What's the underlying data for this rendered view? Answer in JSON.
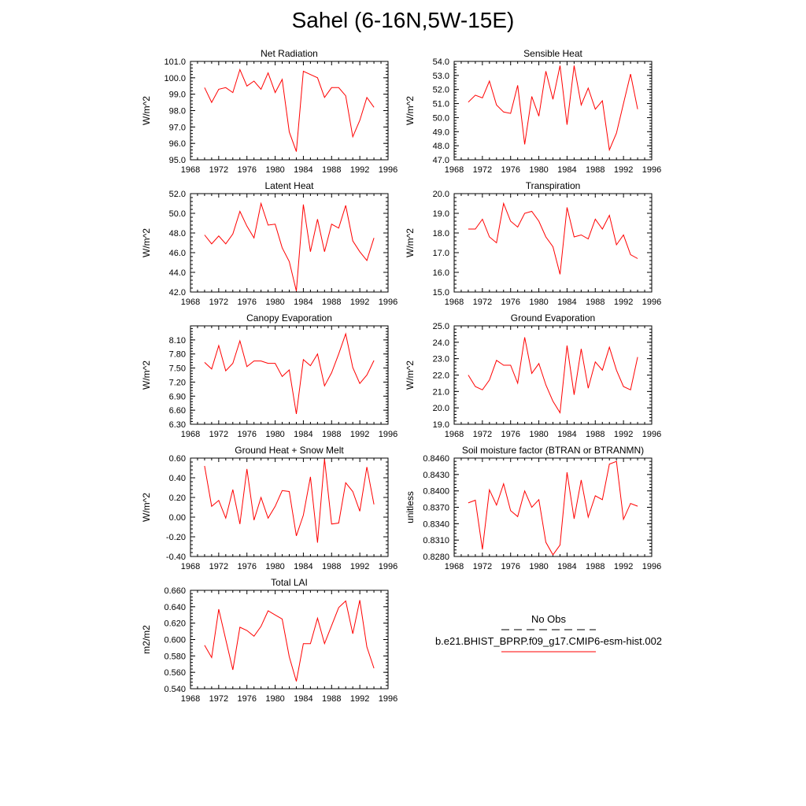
{
  "title": "Sahel (6-16N,5W-15E)",
  "legend": {
    "obs_label": "No Obs",
    "model_label": "b.e21.BHIST_BPRP.f09_g17.CMIP6-esm-hist.002",
    "obs_color": "#000000",
    "model_color": "#ff0000"
  },
  "chart_data": [
    {
      "type": "line",
      "title": "Net Radiation",
      "ylabel": "W/m^2",
      "xlim": [
        1968,
        1996
      ],
      "xticks": [
        "1968",
        "1972",
        "1976",
        "1980",
        "1984",
        "1988",
        "1992",
        "1996"
      ],
      "ylim": [
        95.0,
        101.0
      ],
      "yticks": [
        "95.0",
        "96.0",
        "97.0",
        "98.0",
        "99.0",
        "100.0",
        "101.0"
      ],
      "x": [
        1970,
        1971,
        1972,
        1973,
        1974,
        1975,
        1976,
        1977,
        1978,
        1979,
        1980,
        1981,
        1982,
        1983,
        1984,
        1985,
        1986,
        1987,
        1988,
        1989,
        1990,
        1991,
        1992,
        1993,
        1994
      ],
      "series": [
        {
          "values": [
            99.4,
            98.5,
            99.3,
            99.4,
            99.1,
            100.5,
            99.5,
            99.8,
            99.3,
            100.3,
            99.1,
            99.9,
            96.7,
            95.5,
            100.4,
            100.2,
            100.0,
            98.8,
            99.4,
            99.4,
            98.9,
            96.4,
            97.4,
            98.8,
            98.2
          ]
        }
      ]
    },
    {
      "type": "line",
      "title": "Sensible Heat",
      "ylabel": "W/m^2",
      "xlim": [
        1968,
        1996
      ],
      "xticks": [
        "1968",
        "1972",
        "1976",
        "1980",
        "1984",
        "1988",
        "1992",
        "1996"
      ],
      "ylim": [
        47.0,
        54.0
      ],
      "yticks": [
        "47.0",
        "48.0",
        "49.0",
        "50.0",
        "51.0",
        "52.0",
        "53.0",
        "54.0"
      ],
      "x": [
        1970,
        1971,
        1972,
        1973,
        1974,
        1975,
        1976,
        1977,
        1978,
        1979,
        1980,
        1981,
        1982,
        1983,
        1984,
        1985,
        1986,
        1987,
        1988,
        1989,
        1990,
        1991,
        1992,
        1993,
        1994
      ],
      "series": [
        {
          "values": [
            51.1,
            51.6,
            51.4,
            52.6,
            50.9,
            50.4,
            50.3,
            52.3,
            48.1,
            51.5,
            50.1,
            53.3,
            51.3,
            53.7,
            49.5,
            53.7,
            50.9,
            52.1,
            50.6,
            51.2,
            47.7,
            48.9,
            51.0,
            53.1,
            50.6
          ]
        }
      ]
    },
    {
      "type": "line",
      "title": "Latent Heat",
      "ylabel": "W/m^2",
      "xlim": [
        1968,
        1996
      ],
      "xticks": [
        "1968",
        "1972",
        "1976",
        "1980",
        "1984",
        "1988",
        "1992",
        "1996"
      ],
      "ylim": [
        42.0,
        52.0
      ],
      "yticks": [
        "42.0",
        "44.0",
        "46.0",
        "48.0",
        "50.0",
        "52.0"
      ],
      "x": [
        1970,
        1971,
        1972,
        1973,
        1974,
        1975,
        1976,
        1977,
        1978,
        1979,
        1980,
        1981,
        1982,
        1983,
        1984,
        1985,
        1986,
        1987,
        1988,
        1989,
        1990,
        1991,
        1992,
        1993,
        1994
      ],
      "series": [
        {
          "values": [
            47.8,
            46.9,
            47.7,
            46.9,
            47.9,
            50.2,
            48.7,
            47.5,
            51.0,
            48.8,
            48.9,
            46.5,
            45.1,
            42.1,
            50.9,
            46.1,
            49.4,
            46.1,
            48.9,
            48.5,
            50.8,
            47.2,
            46.1,
            45.2,
            47.5
          ]
        }
      ]
    },
    {
      "type": "line",
      "title": "Transpiration",
      "ylabel": "W/m^2",
      "xlim": [
        1968,
        1996
      ],
      "xticks": [
        "1968",
        "1972",
        "1976",
        "1980",
        "1984",
        "1988",
        "1992",
        "1996"
      ],
      "ylim": [
        15.0,
        20.0
      ],
      "yticks": [
        "15.0",
        "16.0",
        "17.0",
        "18.0",
        "19.0",
        "20.0"
      ],
      "x": [
        1970,
        1971,
        1972,
        1973,
        1974,
        1975,
        1976,
        1977,
        1978,
        1979,
        1980,
        1981,
        1982,
        1983,
        1984,
        1985,
        1986,
        1987,
        1988,
        1989,
        1990,
        1991,
        1992,
        1993,
        1994
      ],
      "series": [
        {
          "values": [
            18.2,
            18.2,
            18.7,
            17.8,
            17.5,
            19.5,
            18.6,
            18.3,
            19.0,
            19.1,
            18.6,
            17.8,
            17.3,
            15.9,
            19.3,
            17.8,
            17.9,
            17.7,
            18.7,
            18.2,
            18.9,
            17.4,
            17.9,
            16.9,
            16.7
          ]
        }
      ]
    },
    {
      "type": "line",
      "title": "Canopy Evaporation",
      "ylabel": "W/m^2",
      "xlim": [
        1968,
        1996
      ],
      "xticks": [
        "1968",
        "1972",
        "1976",
        "1980",
        "1984",
        "1988",
        "1992",
        "1996"
      ],
      "ylim": [
        6.3,
        8.4
      ],
      "yticks": [
        "6.30",
        "6.60",
        "6.90",
        "7.20",
        "7.50",
        "7.80",
        "8.10"
      ],
      "x": [
        1970,
        1971,
        1972,
        1973,
        1974,
        1975,
        1976,
        1977,
        1978,
        1979,
        1980,
        1981,
        1982,
        1983,
        1984,
        1985,
        1986,
        1987,
        1988,
        1989,
        1990,
        1991,
        1992,
        1993,
        1994
      ],
      "series": [
        {
          "values": [
            7.62,
            7.48,
            7.98,
            7.44,
            7.6,
            8.08,
            7.53,
            7.65,
            7.65,
            7.6,
            7.6,
            7.32,
            7.46,
            6.52,
            7.68,
            7.55,
            7.8,
            7.12,
            7.4,
            7.8,
            8.23,
            7.51,
            7.17,
            7.35,
            7.66
          ]
        }
      ]
    },
    {
      "type": "line",
      "title": "Ground Evaporation",
      "ylabel": "W/m^2",
      "xlim": [
        1968,
        1996
      ],
      "xticks": [
        "1968",
        "1972",
        "1976",
        "1980",
        "1984",
        "1988",
        "1992",
        "1996"
      ],
      "ylim": [
        19.0,
        25.0
      ],
      "yticks": [
        "19.0",
        "20.0",
        "21.0",
        "22.0",
        "23.0",
        "24.0",
        "25.0"
      ],
      "x": [
        1970,
        1971,
        1972,
        1973,
        1974,
        1975,
        1976,
        1977,
        1978,
        1979,
        1980,
        1981,
        1982,
        1983,
        1984,
        1985,
        1986,
        1987,
        1988,
        1989,
        1990,
        1991,
        1992,
        1993,
        1994
      ],
      "series": [
        {
          "values": [
            22.0,
            21.3,
            21.1,
            21.7,
            22.9,
            22.6,
            22.6,
            21.5,
            24.3,
            22.1,
            22.7,
            21.4,
            20.4,
            19.7,
            23.8,
            20.8,
            23.6,
            21.2,
            22.8,
            22.3,
            23.7,
            22.3,
            21.3,
            21.1,
            23.1
          ]
        }
      ]
    },
    {
      "type": "line",
      "title": "Ground Heat + Snow Melt",
      "ylabel": "W/m^2",
      "xlim": [
        1968,
        1996
      ],
      "xticks": [
        "1968",
        "1972",
        "1976",
        "1980",
        "1984",
        "1988",
        "1992",
        "1996"
      ],
      "ylim": [
        -0.4,
        0.6
      ],
      "yticks": [
        "-0.40",
        "-0.20",
        "0.00",
        "0.20",
        "0.40",
        "0.60"
      ],
      "x": [
        1970,
        1971,
        1972,
        1973,
        1974,
        1975,
        1976,
        1977,
        1978,
        1979,
        1980,
        1981,
        1982,
        1983,
        1984,
        1985,
        1986,
        1987,
        1988,
        1989,
        1990,
        1991,
        1992,
        1993,
        1994
      ],
      "series": [
        {
          "values": [
            0.52,
            0.11,
            0.17,
            -0.01,
            0.28,
            -0.07,
            0.49,
            -0.03,
            0.2,
            -0.01,
            0.11,
            0.27,
            0.26,
            -0.19,
            0.02,
            0.41,
            -0.26,
            0.59,
            -0.07,
            -0.06,
            0.35,
            0.26,
            0.06,
            0.51,
            0.13
          ]
        }
      ]
    },
    {
      "type": "line",
      "title": "Soil moisture factor (BTRAN or BTRANMN)",
      "ylabel": "unitless",
      "xlim": [
        1968,
        1996
      ],
      "xticks": [
        "1968",
        "1972",
        "1976",
        "1980",
        "1984",
        "1988",
        "1992",
        "1996"
      ],
      "ylim": [
        0.828,
        0.846
      ],
      "yticks": [
        "0.8280",
        "0.8310",
        "0.8340",
        "0.8370",
        "0.8400",
        "0.8430",
        "0.8460"
      ],
      "x": [
        1970,
        1971,
        1972,
        1973,
        1974,
        1975,
        1976,
        1977,
        1978,
        1979,
        1980,
        1981,
        1982,
        1983,
        1984,
        1985,
        1986,
        1987,
        1988,
        1989,
        1990,
        1991,
        1992,
        1993,
        1994
      ],
      "series": [
        {
          "values": [
            0.8378,
            0.8383,
            0.8293,
            0.8402,
            0.8374,
            0.8413,
            0.8364,
            0.8353,
            0.84,
            0.837,
            0.8384,
            0.8306,
            0.8283,
            0.8301,
            0.8434,
            0.8349,
            0.842,
            0.8352,
            0.8391,
            0.8384,
            0.8449,
            0.8454,
            0.8348,
            0.8377,
            0.8372
          ]
        }
      ]
    },
    {
      "type": "line",
      "title": "Total LAI",
      "ylabel": "m2/m2",
      "xlim": [
        1968,
        1996
      ],
      "xticks": [
        "1968",
        "1972",
        "1976",
        "1980",
        "1984",
        "1988",
        "1992",
        "1996"
      ],
      "ylim": [
        0.54,
        0.66
      ],
      "yticks": [
        "0.540",
        "0.560",
        "0.580",
        "0.600",
        "0.620",
        "0.640",
        "0.660"
      ],
      "x": [
        1970,
        1971,
        1972,
        1973,
        1974,
        1975,
        1976,
        1977,
        1978,
        1979,
        1980,
        1981,
        1982,
        1983,
        1984,
        1985,
        1986,
        1987,
        1988,
        1989,
        1990,
        1991,
        1992,
        1993,
        1994
      ],
      "series": [
        {
          "values": [
            0.593,
            0.578,
            0.637,
            0.6,
            0.563,
            0.615,
            0.611,
            0.604,
            0.616,
            0.635,
            0.63,
            0.625,
            0.579,
            0.549,
            0.595,
            0.595,
            0.626,
            0.595,
            0.617,
            0.639,
            0.647,
            0.607,
            0.648,
            0.591,
            0.565
          ]
        }
      ]
    }
  ]
}
